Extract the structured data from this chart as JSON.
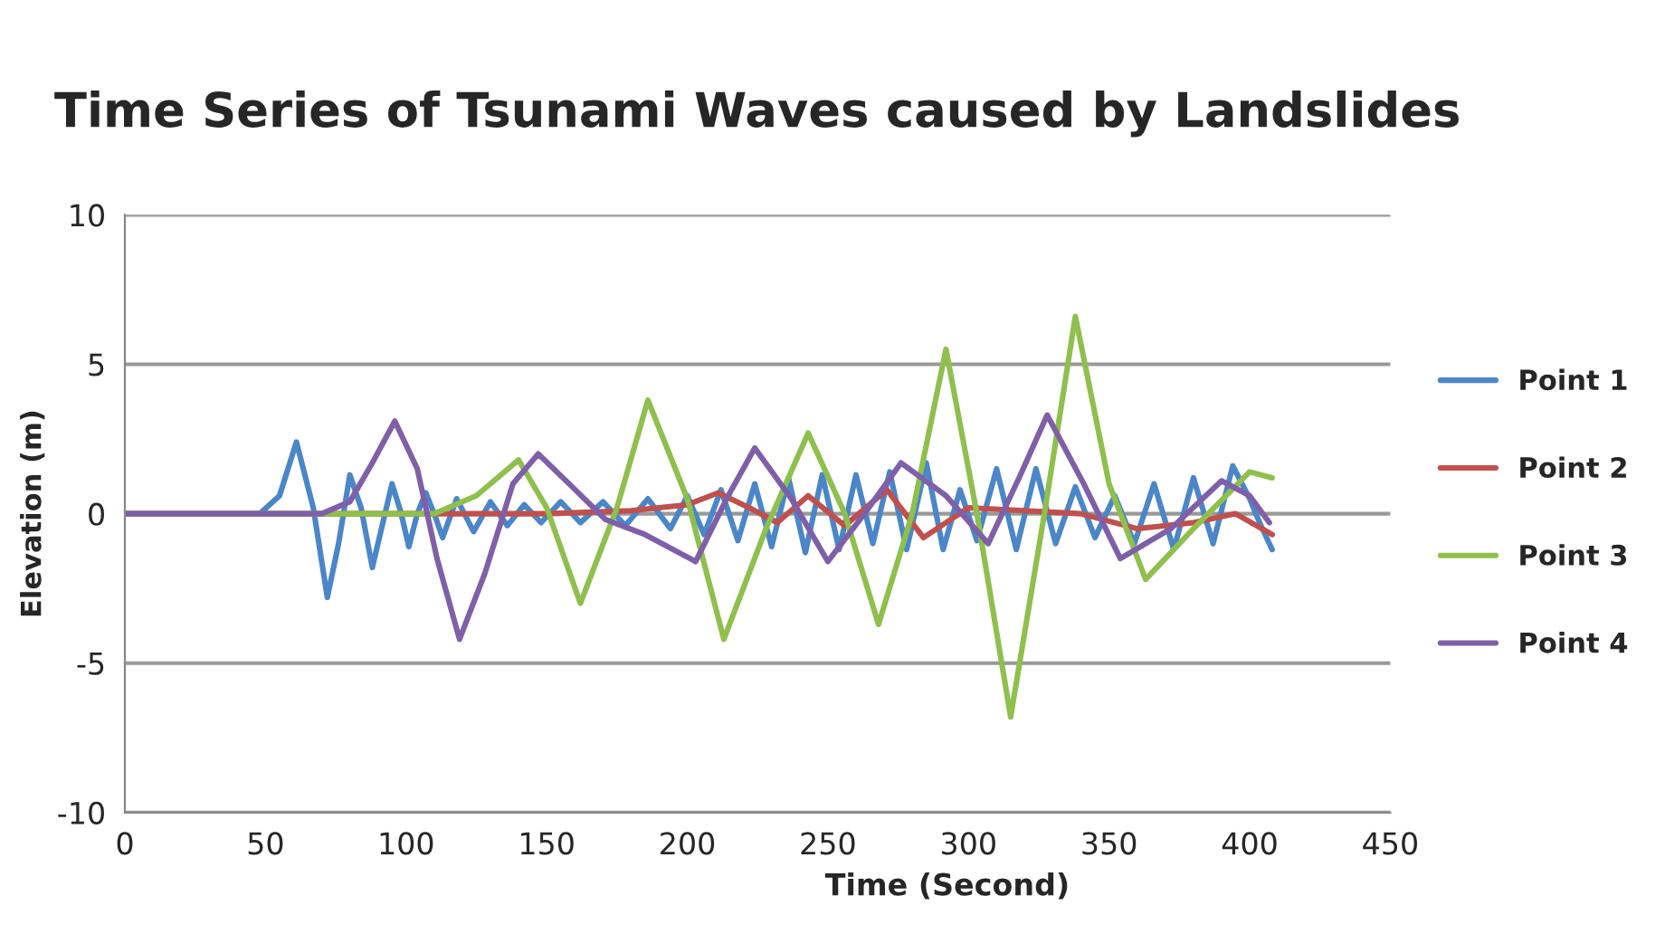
{
  "chart_data": {
    "type": "line",
    "title": "Time Series of Tsunami Waves caused by Landslides",
    "xlabel": "Time (Second)",
    "ylabel": "Elevation (m)",
    "xlim": [
      0,
      450
    ],
    "xticks": [
      0,
      50,
      100,
      150,
      200,
      250,
      300,
      350,
      400,
      450
    ],
    "ylim": [
      -10,
      10
    ],
    "yticks": [
      -10,
      -5,
      0,
      5,
      10
    ],
    "grid": "y",
    "legend": "right",
    "marker": "none",
    "line_style": "solid",
    "series": [
      {
        "name": "Point 1",
        "color": "#4a86c8",
        "x": [
          0,
          48,
          55,
          61,
          67,
          72,
          76,
          80,
          84,
          88,
          92,
          95,
          98,
          101,
          104,
          107,
          110,
          113,
          118,
          124,
          130,
          136,
          142,
          148,
          155,
          162,
          170,
          178,
          186,
          194,
          200,
          206,
          212,
          218,
          224,
          230,
          236,
          242,
          248,
          254,
          260,
          266,
          272,
          278,
          285,
          291,
          297,
          303,
          310,
          317,
          324,
          331,
          338,
          345,
          352,
          359,
          366,
          373,
          380,
          387,
          394,
          400,
          404,
          408
        ],
        "values": [
          0,
          0,
          0.6,
          2.4,
          0.2,
          -2.8,
          -1.0,
          1.3,
          0.2,
          -1.8,
          -0.2,
          1.0,
          0.1,
          -1.1,
          0,
          0.7,
          0,
          -0.8,
          0.5,
          -0.6,
          0.4,
          -0.4,
          0.3,
          -0.3,
          0.4,
          -0.3,
          0.4,
          -0.4,
          0.5,
          -0.5,
          0.6,
          -0.7,
          0.8,
          -0.9,
          1.0,
          -1.1,
          1.2,
          -1.3,
          1.3,
          -1.2,
          1.3,
          -1.0,
          1.4,
          -1.2,
          1.7,
          -1.2,
          0.8,
          -0.9,
          1.5,
          -1.2,
          1.5,
          -1.0,
          0.9,
          -0.8,
          0.6,
          -1.0,
          1.0,
          -1.2,
          1.2,
          -1.0,
          1.6,
          0.5,
          -0.4,
          -1.2
        ]
      },
      {
        "name": "Point 2",
        "color": "#c0504d",
        "x": [
          0,
          150,
          180,
          200,
          211,
          222,
          232,
          243,
          256,
          271,
          284,
          300,
          320,
          340,
          360,
          380,
          395,
          408
        ],
        "values": [
          0,
          0,
          0.1,
          0.3,
          0.7,
          0.2,
          -0.3,
          0.6,
          -0.4,
          0.8,
          -0.8,
          0.2,
          0.1,
          0,
          -0.5,
          -0.3,
          0,
          -0.7
        ]
      },
      {
        "name": "Point 3",
        "color": "#8fbf4d",
        "x": [
          0,
          110,
          125,
          140,
          150,
          162,
          175,
          186,
          200,
          213,
          228,
          243,
          256,
          268,
          280,
          292,
          303,
          315,
          327,
          338,
          350,
          363,
          380,
          400,
          408
        ],
        "values": [
          0,
          0,
          0.6,
          1.8,
          0.2,
          -3.0,
          0.2,
          3.8,
          0.5,
          -4.2,
          -0.5,
          2.7,
          0,
          -3.7,
          0,
          5.5,
          0,
          -6.8,
          0,
          6.6,
          1.0,
          -2.2,
          -0.5,
          1.4,
          1.2
        ]
      },
      {
        "name": "Point 4",
        "color": "#7f5fa8",
        "x": [
          0,
          70,
          80,
          88,
          96,
          104,
          111,
          119,
          128,
          138,
          147,
          158,
          171,
          185,
          203,
          214,
          224,
          237,
          250,
          263,
          276,
          292,
          307,
          318,
          328,
          341,
          354,
          372,
          390,
          400,
          407
        ],
        "values": [
          0,
          0,
          0.4,
          1.7,
          3.1,
          1.5,
          -1.5,
          -4.2,
          -2.0,
          1.0,
          2.0,
          1.0,
          -0.2,
          -0.7,
          -1.6,
          0.5,
          2.2,
          0.5,
          -1.6,
          0,
          1.7,
          0.6,
          -1.0,
          1.2,
          3.3,
          1.0,
          -1.5,
          -0.5,
          1.1,
          0.6,
          -0.3
        ]
      }
    ]
  }
}
